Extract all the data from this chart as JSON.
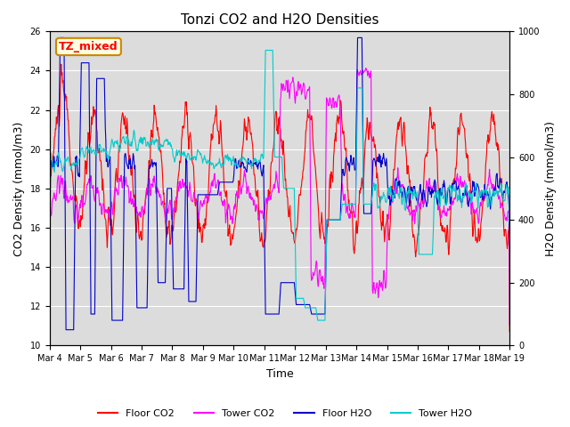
{
  "title": "Tonzi CO2 and H2O Densities",
  "xlabel": "Time",
  "ylabel_left": "CO2 Density (mmol/m3)",
  "ylabel_right": "H2O Density (mmol/m3)",
  "annotation": "TZ_mixed",
  "left_ylim": [
    10,
    26
  ],
  "right_ylim": [
    0,
    1000
  ],
  "colors": {
    "floor_co2": "#ff0000",
    "tower_co2": "#ff00ff",
    "floor_h2o": "#0000cc",
    "tower_h2o": "#00cccc"
  },
  "legend_labels": [
    "Floor CO2",
    "Tower CO2",
    "Floor H2O",
    "Tower H2O"
  ],
  "background_color": "#dcdcdc",
  "n_points": 960,
  "xtick_labels": [
    "Mar 4",
    "Mar 5",
    "Mar 6",
    "Mar 7",
    "Mar 8",
    "Mar 9",
    "Mar 10",
    "Mar 11",
    "Mar 12",
    "Mar 13",
    "Mar 14",
    "Mar 15",
    "Mar 16",
    "Mar 17",
    "Mar 18",
    "Mar 19"
  ],
  "linewidth": 0.8,
  "title_fontsize": 11,
  "axis_fontsize": 9,
  "tick_fontsize": 7,
  "legend_fontsize": 8
}
